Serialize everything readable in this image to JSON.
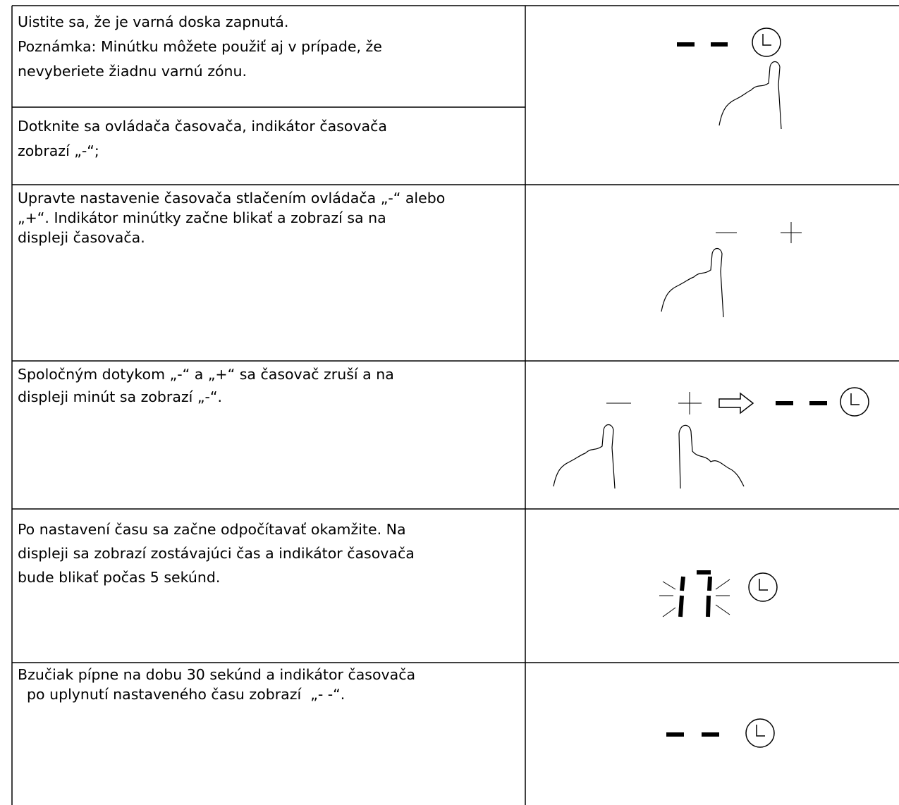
{
  "table": {
    "rows": [
      {
        "lines": [
          "Uistite sa, že je varná doska zapnutá.",
          "Poznámka: Minútku môžete použiť aj v prípade, že",
          "nevyberiete žiadnu varnú zónu."
        ]
      },
      {
        "lines": [
          "Dotknite sa ovládača časovača, indikátor časovača",
          "zobrazí „-“;"
        ]
      },
      {
        "lines": [
          "Upravte nastavenie časovača stlačením ovládača „-“ alebo",
          "„+“. Indikátor minútky začne blikať a zobrazí sa na",
          "displeji časovača."
        ]
      },
      {
        "lines": [
          "Spoločným dotykom „-“ a „+“ sa časovač zruší a na",
          "displeji minút sa zobrazí „-“."
        ]
      },
      {
        "lines": [
          "Po nastavení času sa začne odpočítavať okamžite. Na",
          "displeji sa zobrazí zostávajúci čas a indikátor časovača",
          "bude blikať počas 5 sekúnd."
        ]
      },
      {
        "lines": [
          "Bzučiak pípne na dobu 30 sekúnd a indikátor časovača",
          "  po uplynutí nastaveného času zobrazí  „- -“."
        ]
      }
    ]
  }
}
